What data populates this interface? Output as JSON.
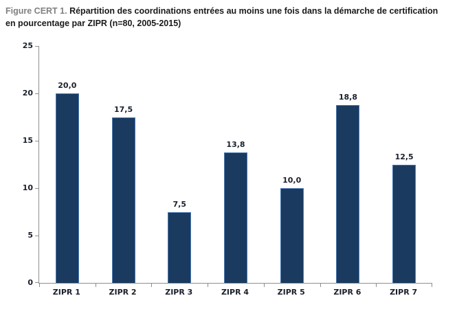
{
  "figure": {
    "title_prefix": "Figure CERT 1.",
    "title": "Répartition des coordinations entrées au moins une fois dans la démarche de certification en pourcentage par ZIPR (n=80, 2005-2015)"
  },
  "chart_data": {
    "type": "bar",
    "title_prefix": "Figure CERT 1.",
    "title": "Répartition des coordinations entrées au moins une fois dans la démarche de certification en pourcentage par ZIPR (n=80, 2005-2015)",
    "categories": [
      "ZIPR 1",
      "ZIPR 2",
      "ZIPR 3",
      "ZIPR 4",
      "ZIPR 5",
      "ZIPR 6",
      "ZIPR 7"
    ],
    "values": [
      20.0,
      17.5,
      7.5,
      13.8,
      10.0,
      18.8,
      12.5
    ],
    "value_labels": [
      "20,0",
      "17,5",
      "7,5",
      "13,8",
      "10,0",
      "18,8",
      "12,5"
    ],
    "xlabel": "",
    "ylabel": "",
    "ylim": [
      0,
      25
    ],
    "yticks": [
      0,
      5,
      10,
      15,
      20,
      25
    ],
    "ytick_labels": [
      "0",
      "5",
      "10",
      "15",
      "20",
      "25"
    ],
    "grid": false,
    "legend": null,
    "colors": {
      "bar_fill": "#1b3a5f",
      "bar_border": "#4879b4",
      "axis": "#8e8e8e",
      "title_prefix": "#808080",
      "title_text": "#1a1a1a",
      "label_text": "#1a1f2b"
    }
  }
}
